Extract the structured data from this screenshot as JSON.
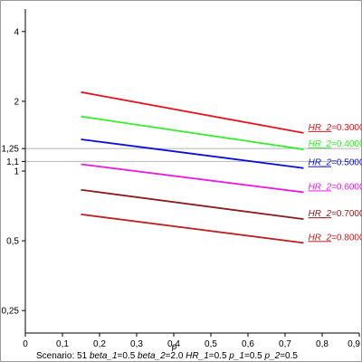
{
  "chart_data": {
    "type": "line",
    "title": "",
    "xlabel": "ρ",
    "ylabel": "",
    "y_scale": "log",
    "xlim": [
      0,
      0.9
    ],
    "ylim": [
      0.2,
      5
    ],
    "grid": false,
    "x_ticks": [
      0,
      0.1,
      0.2,
      0.3,
      0.4,
      0.5,
      0.6,
      0.7,
      0.8,
      0.9
    ],
    "x_tick_labels": [
      "0",
      "0,1",
      "0,2",
      "0,3",
      "0,4",
      "0,5",
      "0,6",
      "0,7",
      "0,8",
      "0,9"
    ],
    "y_ticks": [
      0.25,
      0.5,
      1,
      1.1,
      1.25,
      2,
      4
    ],
    "y_tick_labels": [
      "0,25",
      "0,5",
      "1",
      "1,1",
      "1,25",
      "2",
      "4"
    ],
    "reference_lines": [
      1.1,
      1.25
    ],
    "series": [
      {
        "label_var": "HR_2",
        "label_value": "0.3000",
        "color": "#e8141c",
        "x": [
          0.15,
          0.75
        ],
        "y": [
          2.19,
          1.46
        ]
      },
      {
        "label_var": "HR_2",
        "label_value": "0.4000",
        "color": "#35ef2d",
        "x": [
          0.15,
          0.75
        ],
        "y": [
          1.72,
          1.24
        ]
      },
      {
        "label_var": "HR_2",
        "label_value": "0.5000",
        "color": "#0a10d6",
        "x": [
          0.15,
          0.75
        ],
        "y": [
          1.37,
          1.03
        ]
      },
      {
        "label_var": "HR_2",
        "label_value": "0.6000",
        "color": "#e81ee3",
        "x": [
          0.15,
          0.75
        ],
        "y": [
          1.07,
          0.81
        ]
      },
      {
        "label_var": "HR_2",
        "label_value": "0.7000",
        "color": "#8b1d1d",
        "x": [
          0.15,
          0.75
        ],
        "y": [
          0.83,
          0.62
        ]
      },
      {
        "label_var": "HR_2",
        "label_value": "0.8000",
        "color": "#c01f1f",
        "x": [
          0.15,
          0.75
        ],
        "y": [
          0.65,
          0.49
        ]
      }
    ]
  },
  "caption": {
    "scenario_label": "Scenario: 51",
    "params": [
      {
        "name": "beta_1",
        "value": "0.5"
      },
      {
        "name": "beta_2",
        "value": "2.0"
      },
      {
        "name": "HR_1",
        "value": "0.5"
      },
      {
        "name": "p_1",
        "value": "0.5"
      },
      {
        "name": "p_2",
        "value": "0.5"
      }
    ]
  }
}
